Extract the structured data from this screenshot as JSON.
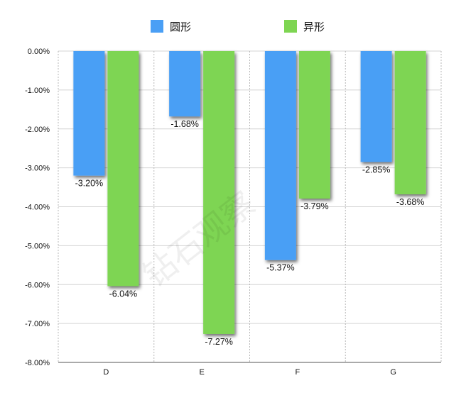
{
  "chart_data": {
    "type": "bar",
    "categories": [
      "D",
      "E",
      "F",
      "G"
    ],
    "series": [
      {
        "name": "圆形",
        "color": "#4a9ff5",
        "values": [
          -3.2,
          -1.68,
          -5.37,
          -2.85
        ],
        "labels": [
          "-3.20%",
          "-1.68%",
          "-5.37%",
          "-2.85%"
        ]
      },
      {
        "name": "异形",
        "color": "#7ed552",
        "values": [
          -6.04,
          -7.27,
          -3.79,
          -3.68
        ],
        "labels": [
          "-6.04%",
          "-7.27%",
          "-3.79%",
          "-3.68%"
        ]
      }
    ],
    "ylim": [
      -8,
      0
    ],
    "yticks": [
      "0.00%",
      "-1.00%",
      "-2.00%",
      "-3.00%",
      "-4.00%",
      "-5.00%",
      "-6.00%",
      "-7.00%",
      "-8.00%"
    ],
    "legend_position": "top",
    "grid": true,
    "watermark": "钻石观察"
  }
}
